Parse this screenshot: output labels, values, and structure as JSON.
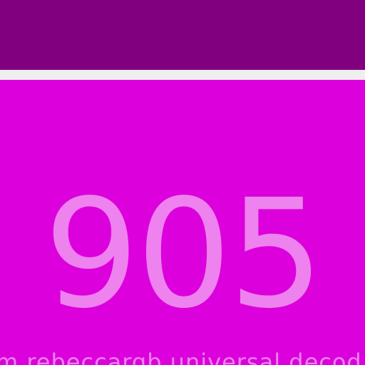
{
  "panel": {
    "number": "905",
    "caption": "m rebeccargb universal decod"
  },
  "colors": {
    "top_bar": "#800080",
    "divider": "#eeeeee",
    "panel": "#dc00dc",
    "text": "#ee82ee"
  }
}
